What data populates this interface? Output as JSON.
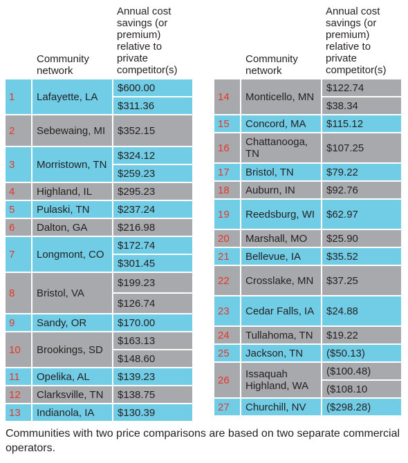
{
  "headers": {
    "network": "Community network",
    "cost": "Annual cost savings (or premium) relative to private competitor(s)"
  },
  "left_rows": [
    {
      "num": "1",
      "name": "Lafayette, LA",
      "values": [
        "$600.00",
        "$311.36"
      ],
      "color": "#71cde6"
    },
    {
      "num": "2",
      "name": "Sebewaing, MI",
      "values": [
        "$352.15"
      ],
      "color": "#a8a9ac"
    },
    {
      "num": "3",
      "name": "Morristown, TN",
      "values": [
        "$324.12",
        "$259.23"
      ],
      "color": "#71cde6"
    },
    {
      "num": "4",
      "name": "Highland, IL",
      "values": [
        "$295.23"
      ],
      "color": "#a8a9ac"
    },
    {
      "num": "5",
      "name": "Pulaski, TN",
      "values": [
        "$237.24"
      ],
      "color": "#71cde6"
    },
    {
      "num": "6",
      "name": "Dalton, GA",
      "values": [
        "$216.98"
      ],
      "color": "#a8a9ac"
    },
    {
      "num": "7",
      "name": "Longmont, CO",
      "values": [
        "$172.74",
        "$301.45"
      ],
      "color": "#71cde6"
    },
    {
      "num": "8",
      "name": "Bristol, VA",
      "values": [
        "$199.23",
        "$126.74"
      ],
      "color": "#a8a9ac"
    },
    {
      "num": "9",
      "name": "Sandy, OR",
      "values": [
        "$170.00"
      ],
      "color": "#71cde6"
    },
    {
      "num": "10",
      "name": "Brookings, SD",
      "values": [
        "$163.13",
        "$148.60"
      ],
      "color": "#a8a9ac"
    },
    {
      "num": "11",
      "name": "Opelika, AL",
      "values": [
        "$139.23"
      ],
      "color": "#71cde6"
    },
    {
      "num": "12",
      "name": "Clarksville, TN",
      "values": [
        "$138.75"
      ],
      "color": "#a8a9ac"
    },
    {
      "num": "13",
      "name": "Indianola, IA",
      "values": [
        "$130.39"
      ],
      "color": "#71cde6"
    }
  ],
  "right_rows": [
    {
      "num": "14",
      "name": "Monticello, MN",
      "values": [
        "$122.74",
        "$38.34"
      ],
      "color": "#a8a9ac"
    },
    {
      "num": "15",
      "name": "Concord, MA",
      "values": [
        "$115.12"
      ],
      "color": "#71cde6"
    },
    {
      "num": "16",
      "name": "Chattanooga, TN",
      "values": [
        "$107.25"
      ],
      "color": "#a8a9ac"
    },
    {
      "num": "17",
      "name": "Bristol, TN",
      "values": [
        "$79.22"
      ],
      "color": "#71cde6"
    },
    {
      "num": "18",
      "name": "Auburn, IN",
      "values": [
        "$92.76"
      ],
      "color": "#a8a9ac"
    },
    {
      "num": "19",
      "name": "Reedsburg, WI",
      "values": [
        "$62.97"
      ],
      "color": "#71cde6"
    },
    {
      "num": "20",
      "name": "Marshall, MO",
      "values": [
        "$25.90"
      ],
      "color": "#a8a9ac"
    },
    {
      "num": "21",
      "name": "Bellevue, IA",
      "values": [
        "$35.52"
      ],
      "color": "#71cde6"
    },
    {
      "num": "22",
      "name": "Crosslake, MN",
      "values": [
        "$37.25"
      ],
      "color": "#a8a9ac"
    },
    {
      "num": "23",
      "name": "Cedar Falls, IA",
      "values": [
        "$24.88"
      ],
      "color": "#71cde6"
    },
    {
      "num": "24",
      "name": "Tullahoma, TN",
      "values": [
        "$19.22"
      ],
      "color": "#a8a9ac"
    },
    {
      "num": "25",
      "name": "Jackson, TN",
      "values": [
        "($50.13)"
      ],
      "color": "#71cde6"
    },
    {
      "num": "26",
      "name": "Issaquah Highland, WA",
      "values": [
        "($100.48)",
        "($108.10"
      ],
      "color": "#a8a9ac"
    },
    {
      "num": "27",
      "name": "Churchill, NV",
      "values": [
        "($298.28)"
      ],
      "color": "#71cde6"
    }
  ],
  "footnote": "Communities with two price comparisons are based on two separate commercial operators."
}
